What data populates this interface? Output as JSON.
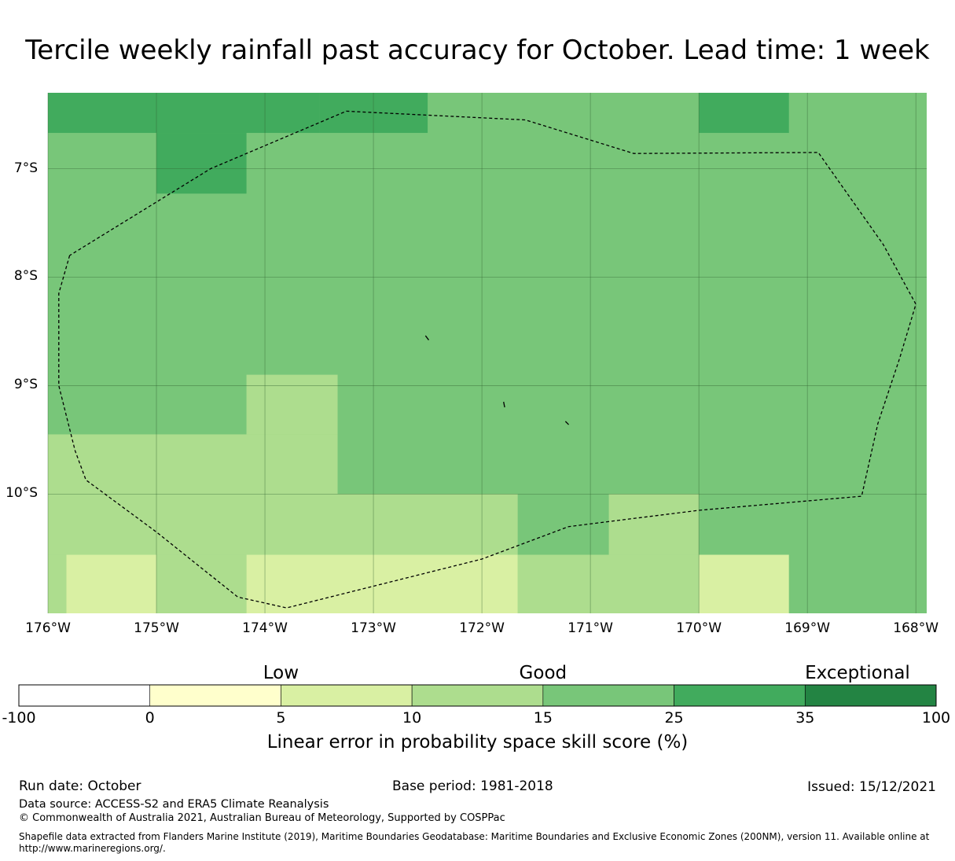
{
  "title": "Tercile weekly rainfall past accuracy for October. Lead time: 1 week",
  "map": {
    "lon_range": [
      -176.0,
      -167.9
    ],
    "lat_range": [
      -6.3,
      -11.1
    ],
    "lat_ticks": [
      {
        "value": -7,
        "label": "7°S"
      },
      {
        "value": -8,
        "label": "8°S"
      },
      {
        "value": -9,
        "label": "9°S"
      },
      {
        "value": -10,
        "label": "10°S"
      }
    ],
    "lon_ticks": [
      {
        "value": -176,
        "label": "176°W"
      },
      {
        "value": -175,
        "label": "175°W"
      },
      {
        "value": -174,
        "label": "174°W"
      },
      {
        "value": -173,
        "label": "173°W"
      },
      {
        "value": -172,
        "label": "172°W"
      },
      {
        "value": -171,
        "label": "171°W"
      },
      {
        "value": -170,
        "label": "170°W"
      },
      {
        "value": -169,
        "label": "169°W"
      },
      {
        "value": -168,
        "label": "168°W"
      }
    ],
    "base_class": "15-25",
    "cells": [
      {
        "lon0": -176.0,
        "lon1": -173.5,
        "lat0": -6.3,
        "lat1": -6.67,
        "cls": "25-35"
      },
      {
        "lon0": -173.5,
        "lon1": -172.5,
        "lat0": -6.3,
        "lat1": -6.67,
        "cls": "25-35"
      },
      {
        "lon0": -175.0,
        "lon1": -174.17,
        "lat0": -6.67,
        "lat1": -7.23,
        "cls": "25-35"
      },
      {
        "lon0": -170.0,
        "lon1": -169.17,
        "lat0": -6.3,
        "lat1": -6.67,
        "cls": "25-35"
      },
      {
        "lon0": -174.17,
        "lon1": -173.33,
        "lat0": -8.9,
        "lat1": -9.45,
        "cls": "10-15"
      },
      {
        "lon0": -176.0,
        "lon1": -173.33,
        "lat0": -9.45,
        "lat1": -10.0,
        "cls": "10-15"
      },
      {
        "lon0": -176.0,
        "lon1": -171.67,
        "lat0": -10.0,
        "lat1": -10.56,
        "cls": "10-15"
      },
      {
        "lon0": -170.83,
        "lon1": -170.0,
        "lat0": -10.0,
        "lat1": -10.56,
        "cls": "10-15"
      },
      {
        "lon0": -176.0,
        "lon1": -175.83,
        "lat0": -10.56,
        "lat1": -11.1,
        "cls": "10-15"
      },
      {
        "lon0": -175.0,
        "lon1": -174.17,
        "lat0": -10.56,
        "lat1": -11.1,
        "cls": "10-15"
      },
      {
        "lon0": -171.67,
        "lon1": -170.0,
        "lat0": -10.56,
        "lat1": -11.1,
        "cls": "10-15"
      },
      {
        "lon0": -175.83,
        "lon1": -175.0,
        "lat0": -10.56,
        "lat1": -11.1,
        "cls": "5-10"
      },
      {
        "lon0": -174.17,
        "lon1": -171.67,
        "lat0": -10.56,
        "lat1": -11.1,
        "cls": "5-10"
      },
      {
        "lon0": -170.0,
        "lon1": -169.17,
        "lat0": -10.56,
        "lat1": -11.1,
        "cls": "5-10"
      }
    ],
    "eez_boundary": [
      [
        -175.8,
        -7.8
      ],
      [
        -175.9,
        -8.15
      ],
      [
        -175.9,
        -8.55
      ],
      [
        -175.9,
        -9.0
      ],
      [
        -175.75,
        -9.6
      ],
      [
        -175.65,
        -9.87
      ],
      [
        -175.0,
        -10.35
      ],
      [
        -174.25,
        -10.95
      ],
      [
        -173.8,
        -11.05
      ],
      [
        -172.0,
        -10.6
      ],
      [
        -171.2,
        -10.3
      ],
      [
        -170.0,
        -10.15
      ],
      [
        -168.5,
        -10.02
      ],
      [
        -168.35,
        -9.35
      ],
      [
        -168.15,
        -8.75
      ],
      [
        -168.0,
        -8.25
      ],
      [
        -168.3,
        -7.7
      ],
      [
        -168.9,
        -6.85
      ],
      [
        -170.6,
        -6.86
      ],
      [
        -171.6,
        -6.55
      ],
      [
        -173.25,
        -6.47
      ],
      [
        -174.5,
        -7.0
      ],
      [
        -175.8,
        -7.8
      ]
    ],
    "islands": [
      [
        [
          -172.52,
          -8.54
        ],
        [
          -172.49,
          -8.58
        ]
      ],
      [
        [
          -171.8,
          -9.15
        ],
        [
          -171.79,
          -9.2
        ]
      ],
      [
        [
          -171.23,
          -9.33
        ],
        [
          -171.2,
          -9.36
        ]
      ]
    ]
  },
  "colorbar": {
    "categories": [
      {
        "label": "Low",
        "at": 5
      },
      {
        "label": "Good",
        "at": 15
      },
      {
        "label": "Exceptional",
        "at": 35
      }
    ],
    "ticks": [
      "-100",
      "0",
      "5",
      "10",
      "15",
      "25",
      "35",
      "100"
    ],
    "classes": [
      {
        "key": "-100-0",
        "color": "#ffffff"
      },
      {
        "key": "0-5",
        "color": "#ffffcc"
      },
      {
        "key": "5-10",
        "color": "#d9f0a3"
      },
      {
        "key": "10-15",
        "color": "#addd8e"
      },
      {
        "key": "15-25",
        "color": "#78c679"
      },
      {
        "key": "25-35",
        "color": "#41ab5d"
      },
      {
        "key": "35-100",
        "color": "#238443"
      }
    ],
    "label": "Linear error in probability space skill score (%)"
  },
  "footer": {
    "run_date": "Run date: October",
    "base_period": "Base period: 1981-2018",
    "issued": "Issued: 15/12/2021",
    "data_source": "Data source: ACCESS-S2 and ERA5 Climate Reanalysis",
    "copyright": "© Commonwealth of Australia 2021, Australian Bureau of Meteorology, Supported by COSPPac",
    "shapefile_line1": "Shapefile data extracted from Flanders Marine Institute (2019), Maritime Boundaries Geodatabase: Maritime Boundaries and Exclusive Economic Zones (200NM), version 11. Available online at",
    "shapefile_line2": "http://www.marineregions.org/."
  }
}
